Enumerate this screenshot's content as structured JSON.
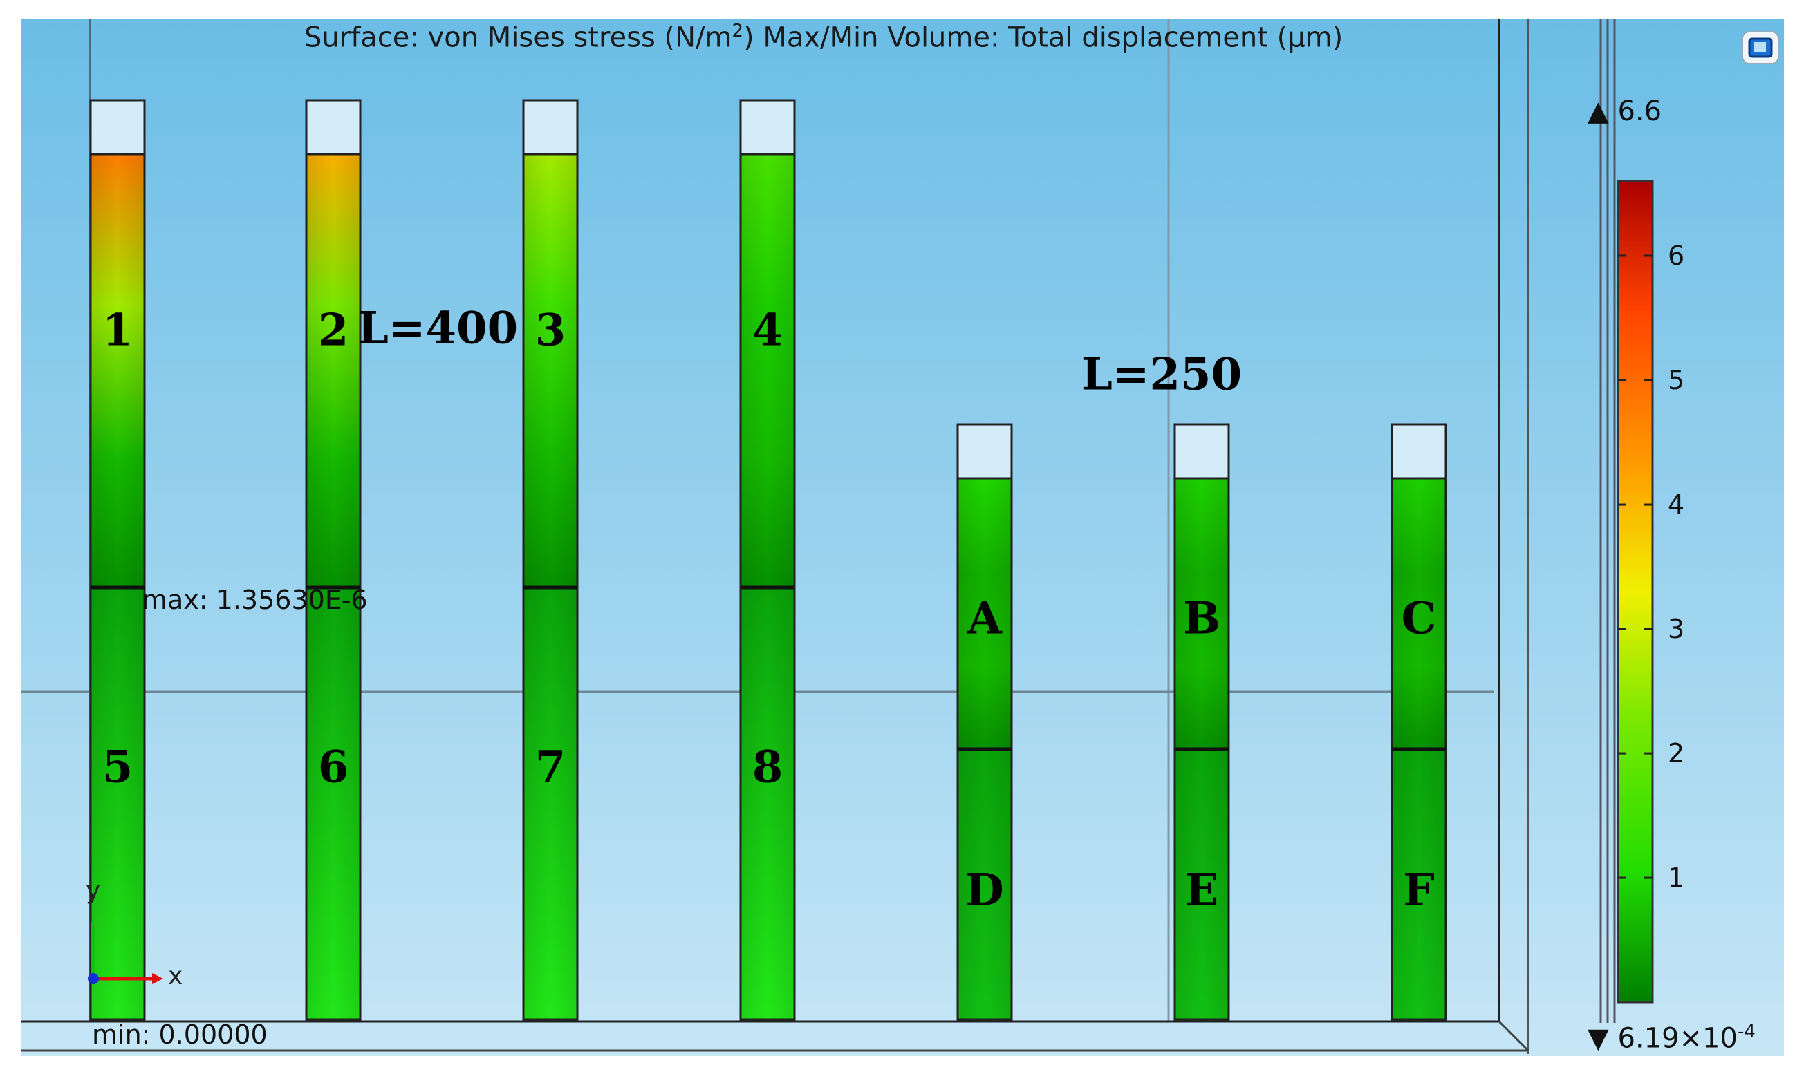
{
  "plot": {
    "title_main": "Surface: von Mises stress (N/m",
    "title_sup": "2",
    "title_rest": ")  Max/Min Volume: Total displacement (µm)",
    "group_labels": {
      "long": "L=400",
      "short": "L=250"
    },
    "max_readout": "max: 1.35630E-6",
    "min_readout": "min: 0.00000",
    "axis_x": "x",
    "axis_y": "y"
  },
  "columns": [
    {
      "top": "1",
      "bottom": "5",
      "group": "long",
      "top_level": 0.72
    },
    {
      "top": "2",
      "bottom": "6",
      "group": "long",
      "top_level": 0.62
    },
    {
      "top": "3",
      "bottom": "7",
      "group": "long",
      "top_level": 0.4
    },
    {
      "top": "4",
      "bottom": "8",
      "group": "long",
      "top_level": 0.24
    },
    {
      "top": "A",
      "bottom": "D",
      "group": "short",
      "top_level": 0.15
    },
    {
      "top": "B",
      "bottom": "E",
      "group": "short",
      "top_level": 0.14
    },
    {
      "top": "C",
      "bottom": "F",
      "group": "short",
      "top_level": 0.14
    }
  ],
  "colorbar": {
    "max_label": "▲ 6.6",
    "min_label": "▼ 6.19×10",
    "min_exp": "-4",
    "ticks": [
      "6",
      "5",
      "4",
      "3",
      "2",
      "1"
    ],
    "range": [
      0.000619,
      6.6
    ],
    "stops": [
      "#008000",
      "#22dd00",
      "#77e800",
      "#f0f000",
      "#ff9900",
      "#ff4400",
      "#aa0000"
    ]
  },
  "colors": {
    "bg_top": "#6bbde6",
    "bg_bottom": "#c6e6f6",
    "deep_green": "#0aa40a",
    "mid_green": "#1ad812",
    "bright_green": "#25ec18"
  }
}
